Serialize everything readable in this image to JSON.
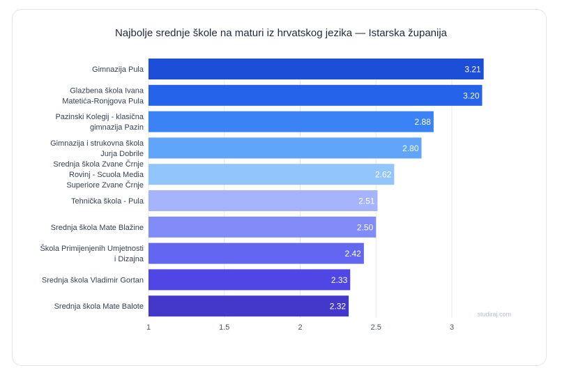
{
  "chart_data": {
    "type": "bar",
    "orientation": "horizontal",
    "title": "Najbolje srednje škole na maturi iz hrvatskog jezika — Istarska županija",
    "categories": [
      "Gimnazija Pula",
      "Glazbena škola Ivana Matetića-Ronjgova Pula",
      "Pazinski Kolegij - klasična gimnazija Pazin",
      "Gimnazija i strukovna škola Jurja Dobrile",
      "Srednja škola Zvane Črnje Rovinj - Scuola Media Superiore Zvane Črnje",
      "Tehnička škola - Pula",
      "Srednja škola Mate Blažine",
      "Škola Primijenjenih Umjetnosti i Dizajna",
      "Srednja škola Vladimir Gortan",
      "Srednja škola Mate Balote"
    ],
    "category_lines": [
      [
        "Gimnazija Pula"
      ],
      [
        "Glazbena škola Ivana",
        "Matetića-Ronjgova Pula"
      ],
      [
        "Pazinski Kolegij - klasična",
        "gimnazija Pazin"
      ],
      [
        "Gimnazija i strukovna škola",
        "Jurja Dobrile"
      ],
      [
        "Srednja škola Zvane Črnje",
        "Rovinj - Scuola Media",
        "Superiore Zvane Črnje"
      ],
      [
        "Tehnička škola - Pula"
      ],
      [
        "Srednja škola Mate Blažine"
      ],
      [
        "Škola Primijenjenih Umjetnosti",
        "i Dizajna"
      ],
      [
        "Srednja škola Vladimir Gortan"
      ],
      [
        "Srednja škola Mate Balote"
      ]
    ],
    "values": [
      3.21,
      3.2,
      2.88,
      2.8,
      2.62,
      2.51,
      2.5,
      2.42,
      2.33,
      2.32
    ],
    "value_labels": [
      "3.21",
      "3.20",
      "2.88",
      "2.80",
      "2.62",
      "2.51",
      "2.50",
      "2.42",
      "2.33",
      "2.32"
    ],
    "colors": [
      "#1d4ed8",
      "#2563eb",
      "#3b82f6",
      "#60a5fa",
      "#93c5fd",
      "#a5b4fc",
      "#818cf8",
      "#6366f1",
      "#4f46e5",
      "#4338ca"
    ],
    "xlim": [
      1,
      3.25
    ],
    "xticks": [
      1,
      1.5,
      2,
      2.5,
      3
    ],
    "xtick_labels": [
      "1",
      "1.5",
      "2",
      "2.5",
      "3"
    ],
    "grid": true,
    "xlabel": "",
    "ylabel": ""
  },
  "watermark": "studiraj.com"
}
